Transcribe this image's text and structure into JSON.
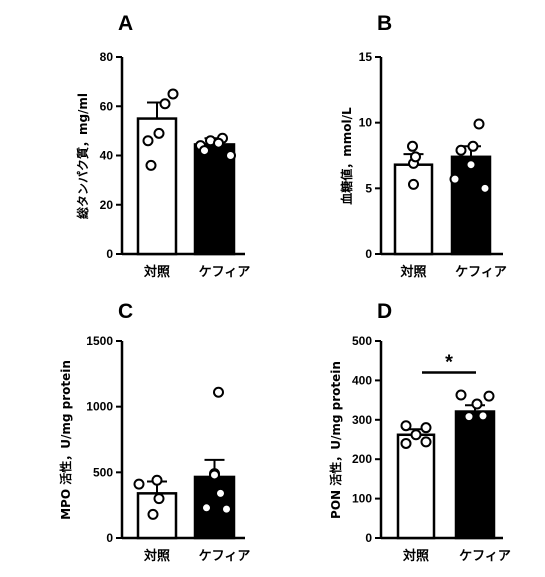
{
  "chart_data": [
    {
      "panel": "A",
      "type": "bar",
      "categories": [
        "対照",
        "ケフィア"
      ],
      "ylabel": "総タンパク質，mg/ml",
      "ylim": [
        0,
        80
      ],
      "yticks": [
        0,
        20,
        40,
        60,
        80
      ],
      "series": [
        {
          "values": [
            55,
            44.5
          ],
          "sem": [
            6.5,
            2.5
          ],
          "fill": [
            "#ffffff",
            "#000000"
          ],
          "points": [
            [
              46,
              61,
              65,
              36,
              49
            ],
            [
              44,
              46,
              47,
              40,
              42,
              45
            ]
          ]
        }
      ],
      "significance": null
    },
    {
      "panel": "B",
      "type": "bar",
      "categories": [
        "対照",
        "ケフィア"
      ],
      "ylabel": "血糖値，mmol/L",
      "ylim": [
        0,
        15
      ],
      "yticks": [
        0,
        5,
        10,
        15
      ],
      "series": [
        {
          "values": [
            6.8,
            7.4
          ],
          "sem": [
            0.8,
            0.8
          ],
          "fill": [
            "#ffffff",
            "#000000"
          ],
          "points": [
            [
              8.2,
              6.9,
              7.4,
              5.3
            ],
            [
              9.9,
              7.9,
              8.2,
              5.7,
              5.0,
              6.8
            ]
          ]
        }
      ],
      "significance": null
    },
    {
      "panel": "C",
      "type": "bar",
      "categories": [
        "対照",
        "ケフィア"
      ],
      "ylabel": "MPO 活性，U/mg protein",
      "ylim": [
        0,
        1500
      ],
      "yticks": [
        0,
        500,
        1000,
        1500
      ],
      "series": [
        {
          "values": [
            340,
            465
          ],
          "sem": [
            90,
            130
          ],
          "fill": [
            "#ffffff",
            "#000000"
          ],
          "points": [
            [
              410,
              440,
              300,
              180
            ],
            [
              1110,
              490,
              340,
              230,
              220,
              480
            ]
          ]
        }
      ],
      "significance": null
    },
    {
      "panel": "D",
      "type": "bar",
      "categories": [
        "対照",
        "ケフィア"
      ],
      "ylabel": "PON 活性，U/mg protein",
      "ylim": [
        0,
        500
      ],
      "yticks": [
        0,
        100,
        200,
        300,
        400,
        500
      ],
      "series": [
        {
          "values": [
            262,
            321
          ],
          "sem": [
            14,
            16
          ],
          "fill": [
            "#ffffff",
            "#000000"
          ],
          "points": [
            [
              285,
              280,
              244,
              240,
              262
            ],
            [
              363,
              360,
              340,
              308,
              310
            ]
          ]
        }
      ],
      "significance": "*"
    }
  ],
  "colors": {
    "axis": "#000000",
    "bar_control": "#ffffff",
    "bar_kefir": "#000000",
    "dot_fill": "#ffffff"
  }
}
